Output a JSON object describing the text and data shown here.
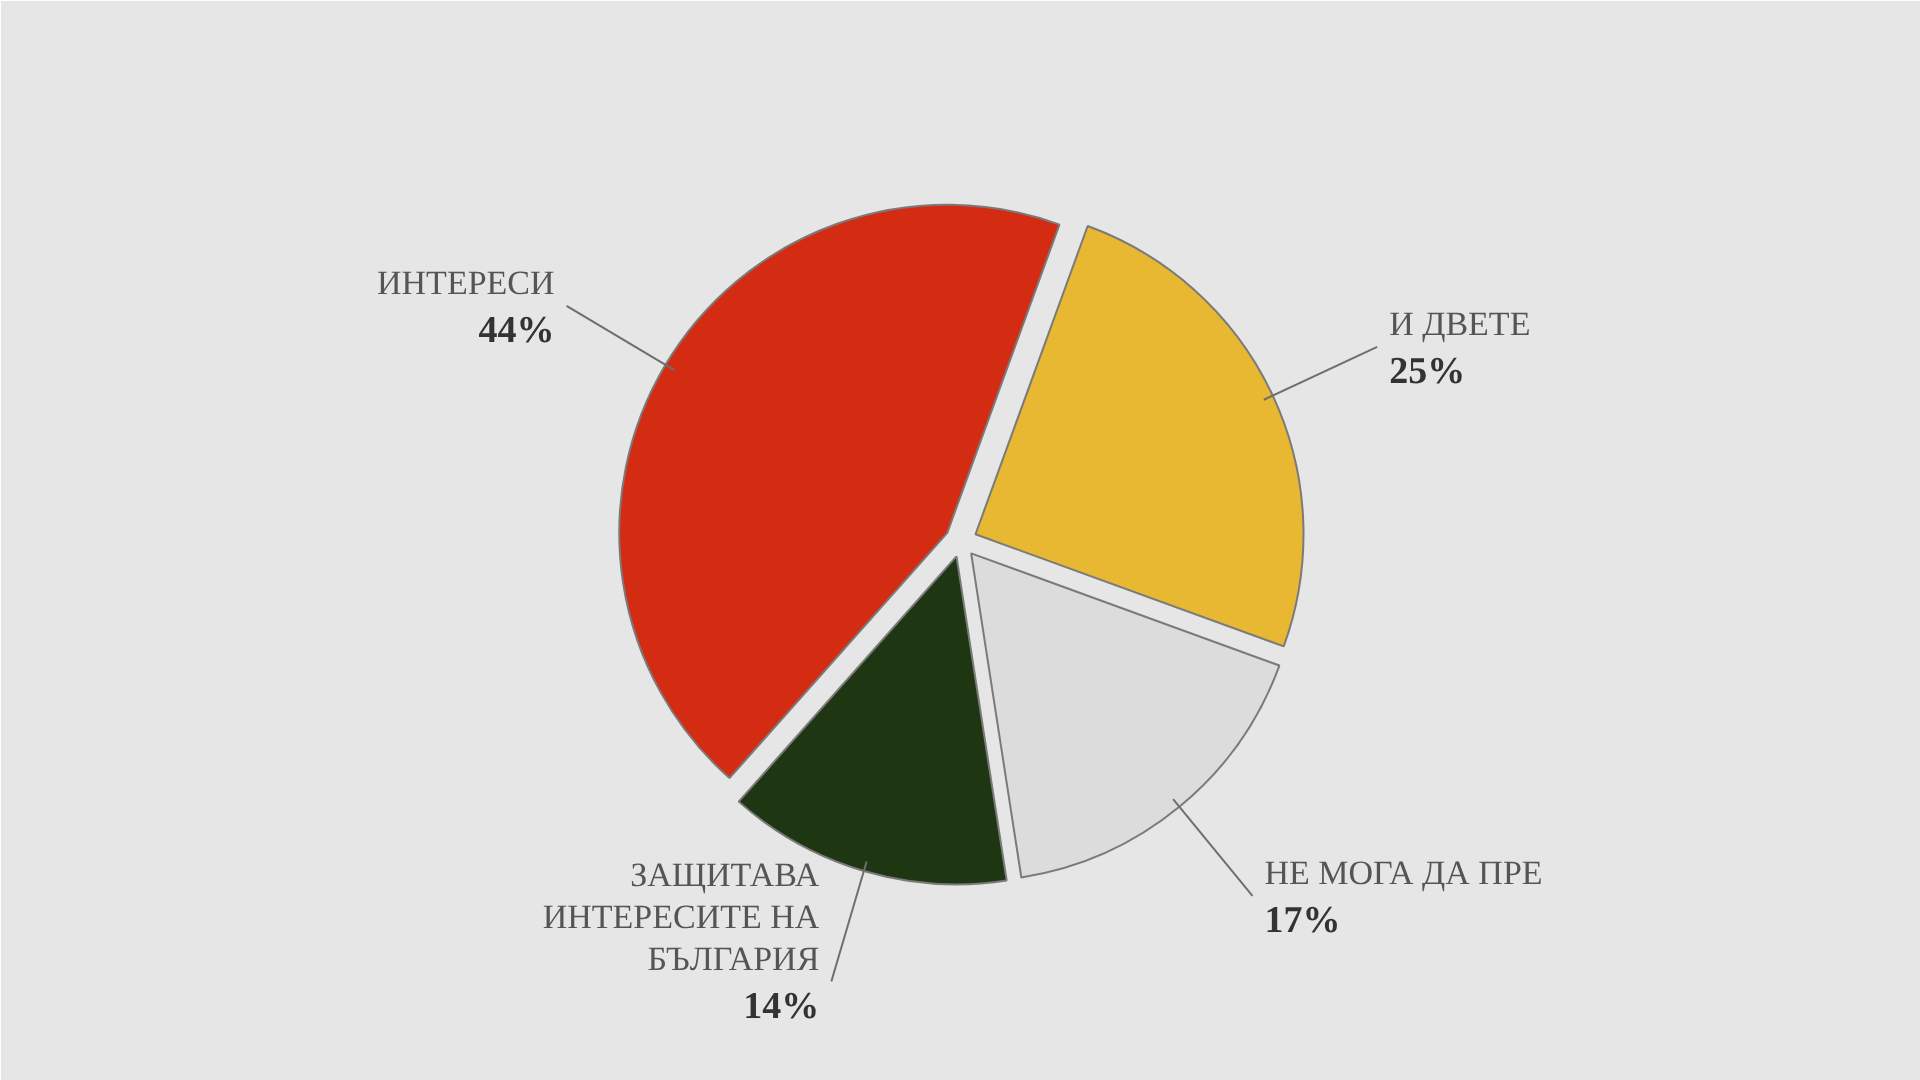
{
  "chart_data": {
    "type": "pie",
    "categories": [
      "И ДВЕТЕ",
      "НЕ МОГА ДА ПРЕ",
      "ЗАЩИТАВА ИНТЕРЕСИТЕ НА БЪЛГАРИЯ",
      "ИНТЕРЕСИ"
    ],
    "values": [
      25,
      17,
      14,
      44
    ],
    "colors": [
      "#e8b833",
      "#dcdcdc",
      "#1e3612",
      "#d42c12"
    ],
    "value_labels": [
      "25%",
      "17%",
      "14%",
      "44%"
    ]
  }
}
